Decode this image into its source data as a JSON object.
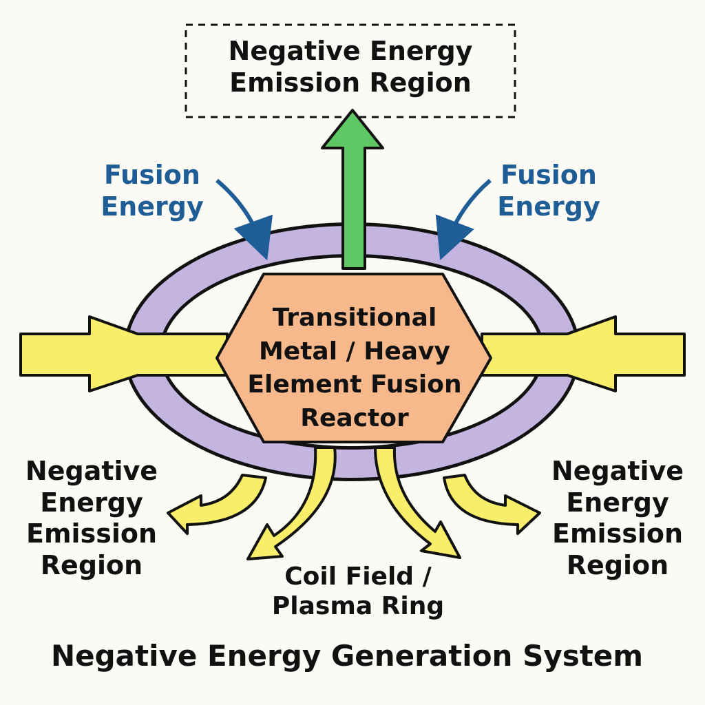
{
  "diagram": {
    "top_region_label": "Negative Energy\nEmission Region",
    "fusion_energy_left": "Fusion\nEnergy",
    "fusion_energy_right": "Fusion\nEnergy",
    "reactor_label": "Transitional\nMetal / Heavy\nElement Fusion\nReactor",
    "side_region_left": "Negative\nEnergy\nEmission\nRegion",
    "side_region_right": "Negative\nEnergy\nEmission\nRegion",
    "coil_label": "Coil Field /\nPlasma Ring",
    "caption": "Negative Energy Generation System"
  },
  "colors": {
    "background": "#fbfaf5",
    "ring": "#c3b4e0",
    "reactor": "#f7b98b",
    "input_arrow": "#f8ee6a",
    "output_arrow": "#60c765",
    "fusion_text": "#1f5d96",
    "outline": "#111111"
  }
}
